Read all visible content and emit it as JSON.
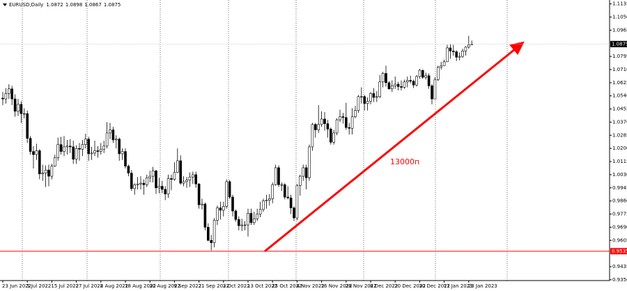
{
  "chart_data": {
    "type": "candlestick",
    "title": "EURUSD,Daily",
    "annotation": "13000п",
    "level": 0.9535,
    "level_color": "#ff0000",
    "color_up": "#ffffff",
    "color_down": "#000000",
    "ylim": [
      0.9345,
      1.116
    ],
    "yticks": [
      {
        "value": 0.935,
        "label": "0.9350"
      },
      {
        "value": 0.9435,
        "label": "0.9435"
      },
      {
        "value": 0.9605,
        "label": "0.9605"
      },
      {
        "value": 0.969,
        "label": "0.9690"
      },
      {
        "value": 0.9775,
        "label": "0.9775"
      },
      {
        "value": 0.986,
        "label": "0.9860"
      },
      {
        "value": 0.9945,
        "label": "0.9945"
      },
      {
        "value": 1.003,
        "label": "1.0030"
      },
      {
        "value": 1.0115,
        "label": "1.0115"
      },
      {
        "value": 1.02,
        "label": "1.0200"
      },
      {
        "value": 1.0285,
        "label": "1.0285"
      },
      {
        "value": 1.037,
        "label": "1.0370"
      },
      {
        "value": 1.0455,
        "label": "1.0455"
      },
      {
        "value": 1.054,
        "label": "1.0540"
      },
      {
        "value": 1.0625,
        "label": "1.0625"
      },
      {
        "value": 1.071,
        "label": "1.0710"
      },
      {
        "value": 1.0795,
        "label": "1.0795"
      },
      {
        "value": 1.0965,
        "label": "1.0965"
      },
      {
        "value": 1.105,
        "label": "1.1050"
      },
      {
        "value": 1.1135,
        "label": "1.1135"
      }
    ],
    "categories": [
      "23 Jun 2022",
      null,
      null,
      null,
      null,
      null,
      null,
      null,
      "5 Jul 2022",
      null,
      null,
      null,
      null,
      null,
      null,
      null,
      "15 Jul 2022",
      null,
      null,
      null,
      null,
      null,
      null,
      null,
      "27 Jul 2022",
      null,
      null,
      null,
      null,
      null,
      null,
      null,
      "8 Aug 2022",
      null,
      null,
      null,
      null,
      null,
      null,
      null,
      "18 Aug 2022",
      null,
      null,
      null,
      null,
      null,
      null,
      null,
      "30 Aug 2022",
      null,
      null,
      null,
      null,
      null,
      null,
      null,
      "9 Sep 2022",
      null,
      null,
      null,
      null,
      null,
      null,
      null,
      "21 Sep 2022",
      null,
      null,
      null,
      null,
      null,
      null,
      null,
      "3 Oct 2022",
      null,
      null,
      null,
      null,
      null,
      null,
      null,
      "13 Oct 2022",
      null,
      null,
      null,
      null,
      null,
      null,
      null,
      "25 Oct 2022",
      null,
      null,
      null,
      null,
      null,
      null,
      null,
      "4 Nov 2022",
      null,
      null,
      null,
      null,
      null,
      null,
      null,
      "16 Nov 2022",
      null,
      null,
      null,
      null,
      null,
      null,
      null,
      "28 Nov 2022",
      null,
      null,
      null,
      null,
      null,
      null,
      null,
      "8 Dec 2022",
      null,
      null,
      null,
      null,
      null,
      null,
      null,
      "20 Dec 2022",
      null,
      null,
      null,
      null,
      null,
      null,
      null,
      "30 Dec 2022",
      null,
      null,
      null,
      null,
      null,
      null,
      null,
      "11 Jan 2023",
      null,
      null,
      null,
      null,
      null,
      null,
      null,
      "23 Jan 2023",
      null
    ],
    "open": [
      1.0525,
      1.052,
      1.0555,
      1.0585,
      1.052,
      1.044,
      1.0485,
      1.0425,
      1.0425,
      1.0265,
      1.018,
      1.016,
      1.0185,
      1.0035,
      1.004,
      1.006,
      1.002,
      1.0085,
      1.014,
      1.0225,
      1.018,
      1.021,
      1.0215,
      1.021,
      1.013,
      1.02,
      1.0195,
      1.0225,
      1.026,
      1.0165,
      1.017,
      1.0185,
      1.018,
      1.0195,
      1.0215,
      1.03,
      1.032,
      1.0255,
      1.026,
      1.0165,
      1.018,
      1.0085,
      1.004,
      0.994,
      0.9965,
      0.997,
      0.9975,
      0.9965,
      1.001,
      1.002,
      1.0055,
      0.9945,
      0.9955,
      0.9935,
      0.9905,
      1.0005,
      1.0,
      1.0045,
      1.012,
      0.9975,
      0.9985,
      0.9995,
      1.0015,
      1.003,
      0.997,
      0.9835,
      0.984,
      0.969,
      0.9605,
      0.959,
      0.9735,
      0.9815,
      0.98,
      0.9825,
      0.9985,
      0.9885,
      0.9795,
      0.974,
      0.97,
      0.9705,
      0.9705,
      0.978,
      0.972,
      0.9745,
      0.9775,
      0.9805,
      0.986,
      0.9865,
      0.9875,
      0.9965,
      1.0075,
      0.9965,
      0.9965,
      0.9885,
      0.988,
      0.9815,
      0.975,
      0.996,
      1.002,
      1.0075,
      1.001,
      1.021,
      1.0355,
      1.032,
      1.0355,
      1.039,
      1.036,
      1.0325,
      1.024,
      1.03,
      1.0385,
      1.0405,
      1.04,
      1.0335,
      1.033,
      1.0405,
      1.0445,
      1.0535,
      1.0535,
      1.049,
      1.0505,
      1.0555,
      1.053,
      1.0535,
      1.063,
      1.0685,
      1.0625,
      1.0585,
      1.0605,
      1.0615,
      1.06,
      1.0595,
      1.063,
      1.064,
      1.0635,
      1.061,
      1.0665,
      1.0705,
      1.066,
      1.067,
      1.0605,
      1.052,
      1.0645,
      1.0725,
      1.0735,
      1.076,
      1.085,
      1.083,
      1.0825,
      1.079,
      1.0795,
      1.083,
      1.0855,
      1.0872
    ],
    "high": [
      1.0565,
      1.059,
      1.0615,
      1.0605,
      1.055,
      1.052,
      1.0505,
      1.046,
      1.0445,
      1.028,
      1.0215,
      1.023,
      1.0195,
      1.0095,
      1.009,
      1.0095,
      1.01,
      1.016,
      1.027,
      1.0275,
      1.028,
      1.0255,
      1.026,
      1.025,
      1.022,
      1.0235,
      1.0255,
      1.0295,
      1.0275,
      1.021,
      1.025,
      1.0215,
      1.0235,
      1.025,
      1.037,
      1.0365,
      1.034,
      1.0285,
      1.027,
      1.02,
      1.02,
      1.0095,
      1.006,
      0.9975,
      1.0015,
      1.002,
      1.0,
      1.003,
      1.0055,
      1.008,
      1.006,
      1.001,
      0.999,
      0.9955,
      1.003,
      1.003,
      1.011,
      1.02,
      1.0155,
      1.002,
      1.0015,
      1.0045,
      1.005,
      1.005,
      0.9975,
      0.9875,
      0.985,
      0.9715,
      0.964,
      0.975,
      0.983,
      0.9855,
      0.9855,
      1.0,
      0.9995,
      0.99,
      0.9805,
      0.976,
      0.9745,
      0.973,
      0.981,
      0.981,
      0.979,
      0.981,
      0.9855,
      0.9875,
      0.99,
      0.9905,
      0.998,
      1.0095,
      1.009,
      0.998,
      0.9975,
      0.9955,
      0.99,
      0.9825,
      0.997,
      1.003,
      1.0095,
      1.0095,
      1.0225,
      1.0365,
      1.0365,
      1.048,
      1.044,
      1.0435,
      1.0385,
      1.0335,
      1.032,
      1.0395,
      1.045,
      1.043,
      1.0495,
      1.0365,
      1.046,
      1.0475,
      1.0545,
      1.0595,
      1.0545,
      1.053,
      1.0565,
      1.059,
      1.057,
      1.0675,
      1.0695,
      1.0735,
      1.0635,
      1.064,
      1.0665,
      1.063,
      1.064,
      1.0645,
      1.0665,
      1.067,
      1.0645,
      1.0675,
      1.0715,
      1.071,
      1.069,
      1.0685,
      1.0615,
      1.066,
      1.0735,
      1.076,
      1.0775,
      1.087,
      1.0875,
      1.087,
      1.0835,
      1.082,
      1.0845,
      1.086,
      1.0928,
      1.0898
    ],
    "low": [
      1.048,
      1.049,
      1.052,
      1.048,
      1.0405,
      1.041,
      1.0365,
      1.0395,
      1.0235,
      1.016,
      1.007,
      1.0125,
      1.0,
      0.999,
      0.995,
      0.9955,
      1.0,
      1.008,
      1.012,
      1.016,
      1.015,
      1.016,
      1.017,
      1.01,
      1.01,
      1.012,
      1.015,
      1.02,
      1.012,
      1.0125,
      1.015,
      1.014,
      1.016,
      1.017,
      1.02,
      1.026,
      1.0235,
      1.02,
      1.012,
      1.0125,
      1.007,
      1.002,
      0.9925,
      0.99,
      0.9935,
      0.9935,
      0.99,
      0.995,
      0.998,
      0.998,
      0.9905,
      0.991,
      0.991,
      0.9865,
      0.988,
      0.993,
      0.999,
      1.004,
      0.9965,
      0.9955,
      0.9945,
      0.995,
      0.997,
      0.9945,
      0.981,
      0.9805,
      0.967,
      0.96,
      0.954,
      0.956,
      0.9705,
      0.974,
      0.976,
      0.981,
      0.9875,
      0.976,
      0.9725,
      0.967,
      0.9665,
      0.967,
      0.963,
      0.9705,
      0.9705,
      0.973,
      0.9755,
      0.979,
      0.981,
      0.983,
      0.9845,
      0.996,
      0.995,
      0.9925,
      0.987,
      0.987,
      0.9775,
      0.973,
      0.9735,
      0.9895,
      0.999,
      0.9935,
      0.999,
      1.0185,
      1.027,
      1.03,
      1.034,
      1.0315,
      1.027,
      1.0225,
      1.0225,
      1.0285,
      1.037,
      1.036,
      1.032,
      1.029,
      1.029,
      1.0395,
      1.043,
      1.049,
      1.0445,
      1.0445,
      1.0485,
      1.05,
      1.05,
      1.0525,
      1.0595,
      1.06,
      1.058,
      1.0565,
      1.0585,
      1.0575,
      1.0575,
      1.0585,
      1.0595,
      1.062,
      1.059,
      1.06,
      1.065,
      1.065,
      1.0645,
      1.0585,
      1.0485,
      1.052,
      1.0635,
      1.071,
      1.0735,
      1.076,
      1.078,
      1.08,
      1.0765,
      1.077,
      1.0785,
      1.08,
      1.0845,
      1.0867
    ],
    "close": [
      1.052,
      1.0555,
      1.0585,
      1.052,
      1.044,
      1.0485,
      1.0425,
      1.0425,
      1.0265,
      1.018,
      1.016,
      1.0185,
      1.0035,
      1.004,
      1.006,
      1.002,
      1.0085,
      1.014,
      1.0225,
      1.018,
      1.021,
      1.0215,
      1.021,
      1.013,
      1.02,
      1.0195,
      1.0225,
      1.026,
      1.0165,
      1.017,
      1.0185,
      1.018,
      1.0195,
      1.0215,
      1.03,
      1.032,
      1.0255,
      1.026,
      1.0165,
      1.018,
      1.0085,
      1.004,
      0.994,
      0.9965,
      0.997,
      0.9975,
      0.9965,
      1.001,
      1.002,
      1.0055,
      0.9945,
      0.9955,
      0.9935,
      0.9905,
      1.0005,
      1.0,
      1.0045,
      1.012,
      0.9975,
      0.9985,
      0.9995,
      1.0015,
      1.003,
      0.997,
      0.9835,
      0.984,
      0.969,
      0.9605,
      0.959,
      0.9735,
      0.9815,
      0.98,
      0.9825,
      0.9985,
      0.9885,
      0.9795,
      0.974,
      0.97,
      0.9705,
      0.9705,
      0.978,
      0.972,
      0.9745,
      0.9775,
      0.9805,
      0.986,
      0.9865,
      0.9875,
      0.9965,
      1.0075,
      0.9965,
      0.9965,
      0.9885,
      0.988,
      0.9815,
      0.975,
      0.996,
      1.002,
      1.0075,
      1.001,
      1.021,
      1.0355,
      1.032,
      1.0355,
      1.039,
      1.036,
      1.0325,
      1.024,
      1.03,
      1.0385,
      1.0405,
      1.04,
      1.0335,
      1.033,
      1.0405,
      1.0445,
      1.0535,
      1.0535,
      1.049,
      1.0505,
      1.0555,
      1.053,
      1.0535,
      1.063,
      1.0685,
      1.0625,
      1.0585,
      1.0605,
      1.0615,
      1.06,
      1.0595,
      1.063,
      1.064,
      1.0635,
      1.061,
      1.0665,
      1.0705,
      1.066,
      1.067,
      1.0605,
      1.052,
      1.0645,
      1.0725,
      1.0735,
      1.076,
      1.085,
      1.083,
      1.0825,
      1.079,
      1.0795,
      1.083,
      1.0855,
      1.087,
      1.0875
    ]
  }
}
